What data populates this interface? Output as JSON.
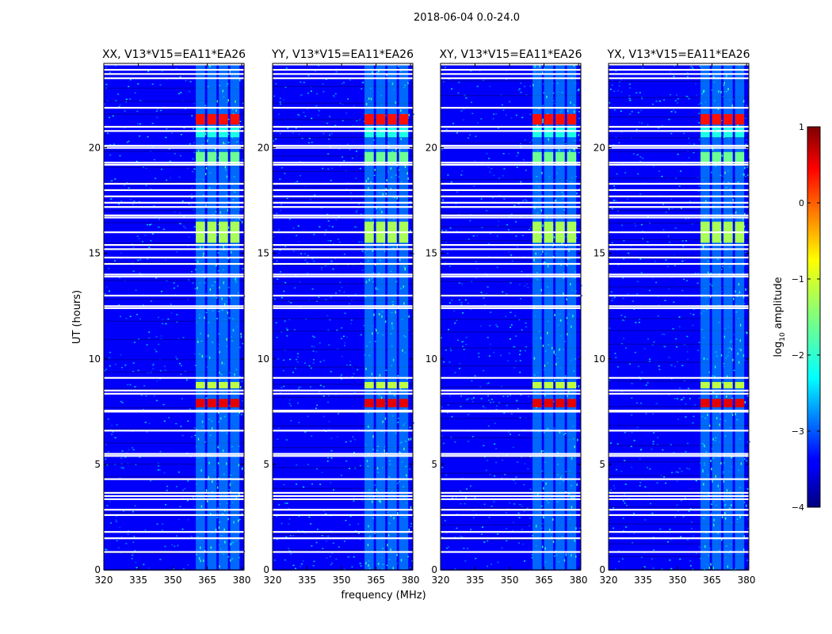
{
  "chart_data": {
    "type": "heatmap",
    "suptitle": "2018-06-04 0.0-24.0",
    "xlabel": "frequency (MHz)",
    "ylabel": "UT (hours)",
    "xlim": [
      320,
      381
    ],
    "ylim": [
      0,
      24
    ],
    "xticks": [
      320,
      335,
      350,
      365,
      380
    ],
    "yticks": [
      0,
      5,
      10,
      15,
      20
    ],
    "panels": [
      {
        "title": "XX, V13*V15=EA11*EA26",
        "polarization": "XX"
      },
      {
        "title": "YY, V13*V15=EA11*EA26",
        "polarization": "YY"
      },
      {
        "title": "XY, V13*V15=EA11*EA26",
        "polarization": "XY"
      },
      {
        "title": "YX, V13*V15=EA11*EA26",
        "polarization": "YX"
      }
    ],
    "colorbar": {
      "label": "log10 amplitude",
      "vmin": -4,
      "vmax": 1,
      "ticks": [
        -4,
        -3,
        -2,
        -1,
        0,
        1
      ],
      "tick_labels": [
        "−4",
        "−3",
        "−2",
        "−1",
        "0",
        "1"
      ],
      "colormap": "jet"
    },
    "features": {
      "rfi_band_mhz": [
        360,
        380
      ],
      "rfi_subbands_mhz": [
        [
          360,
          364
        ],
        [
          365,
          369
        ],
        [
          370,
          374
        ],
        [
          375,
          379
        ]
      ],
      "strong_bursts_hours": [
        {
          "ut_range": [
            7.7,
            8.1
          ],
          "peak_log_amp": 0.5
        },
        {
          "ut_range": [
            8.6,
            8.9
          ],
          "peak_log_amp": -1.2
        },
        {
          "ut_range": [
            15.5,
            16.5
          ],
          "peak_log_amp": -1.3
        },
        {
          "ut_range": [
            19.2,
            19.8
          ],
          "peak_log_amp": -1.6
        },
        {
          "ut_range": [
            20.5,
            21.0
          ],
          "peak_log_amp": -2.0
        },
        {
          "ut_range": [
            21.1,
            21.6
          ],
          "peak_log_amp": 0.3
        }
      ],
      "flagged_rows_hours": [
        0.85,
        1.5,
        1.8,
        2.6,
        2.85,
        3.35,
        3.5,
        3.65,
        4.3,
        5.4,
        5.5,
        6.6,
        7.5,
        7.55,
        8.35,
        8.5,
        9.1,
        12.4,
        12.5,
        13.0,
        13.9,
        14.0,
        14.5,
        14.8,
        15.2,
        15.4,
        16.0,
        16.7,
        16.8,
        17.2,
        17.4,
        17.7,
        18.0,
        18.3,
        19.2,
        19.3,
        20.0,
        20.1,
        20.8,
        21.0,
        21.9,
        23.3,
        23.5,
        23.7,
        23.95
      ],
      "background_log_amp": -3.4
    }
  }
}
